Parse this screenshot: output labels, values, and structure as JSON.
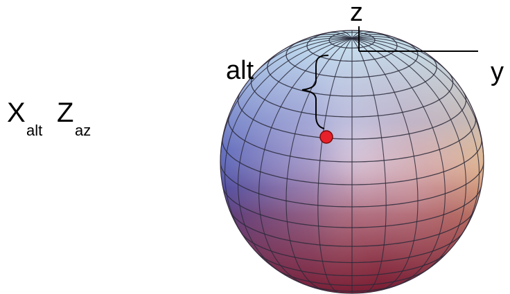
{
  "formula": {
    "x_base": "X",
    "x_sub": "alt",
    "z_base": "Z",
    "z_sub": "az"
  },
  "axes": {
    "z_label": "z",
    "y_label": "y"
  },
  "annotation": {
    "alt_label": "alt"
  },
  "colors": {
    "marker_fill": "#e8202a",
    "marker_stroke": "#7a0a0a",
    "grid_line": "#2a2a3a",
    "axis_line": "#000000",
    "sphere_top": "#b8dcf0",
    "sphere_left": "#3a4ab0",
    "sphere_right": "#f0c870",
    "sphere_bottom": "#8a2a3a"
  }
}
